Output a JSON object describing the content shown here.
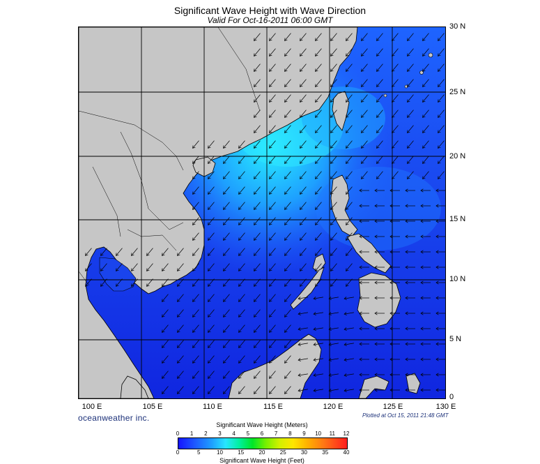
{
  "title": "Significant Wave Height with Wave Direction",
  "subtitle": "Valid For Oct-16-2011 06:00 GMT",
  "lat_labels": [
    "30 N",
    "25 N",
    "20 N",
    "15 N",
    "10 N",
    "5 N",
    "0"
  ],
  "lon_labels": [
    "100 E",
    "105 E",
    "110 E",
    "115 E",
    "120 E",
    "125 E",
    "130 E"
  ],
  "brand": "oceanweather inc.",
  "plotted": "Plotted at Oct 15, 2011 21:48 GMT",
  "legend": {
    "title_meters": "Significant Wave Height (Meters)",
    "title_feet": "Significant Wave Height (Feet)",
    "meter_ticks": [
      "0",
      "1",
      "2",
      "3",
      "4",
      "5",
      "6",
      "7",
      "8",
      "9",
      "10",
      "11",
      "12"
    ],
    "feet_ticks": [
      "0",
      "5",
      "10",
      "15",
      "20",
      "25",
      "30",
      "35",
      "40"
    ]
  },
  "colors": {
    "land": "#c6c6c6",
    "low_wave": "#1428f0",
    "mid_wave": "#1e6eff",
    "high_wave": "#28e6ff",
    "grid": "#000000"
  }
}
